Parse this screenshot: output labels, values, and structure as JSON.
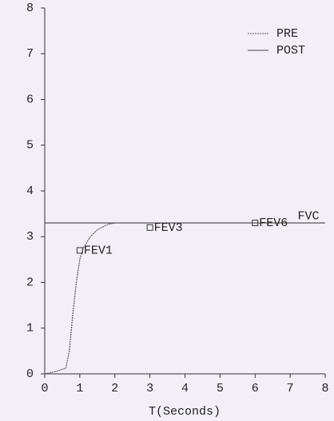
{
  "chart_data": {
    "type": "line",
    "xlabel": "T(Seconds)",
    "xlim": [
      0,
      8
    ],
    "xticks": [
      0,
      1,
      2,
      3,
      4,
      5,
      6,
      7,
      8
    ],
    "ylim": [
      0,
      8
    ],
    "yticks": [
      0,
      1,
      2,
      3,
      4,
      5,
      6,
      7,
      8
    ],
    "legend": "top-right",
    "series": [
      {
        "name": "PRE",
        "color": "#555555",
        "dashed": true,
        "x": [
          0,
          0.3,
          0.6,
          0.7,
          0.8,
          0.9,
          1.0,
          1.1,
          1.3,
          1.5,
          1.8,
          2.0
        ],
        "values": [
          0,
          0.05,
          0.12,
          0.5,
          1.3,
          2.0,
          2.5,
          2.75,
          3.0,
          3.15,
          3.27,
          3.3
        ]
      },
      {
        "name": "POST",
        "color": "#444444",
        "dashed": false,
        "x": [
          0,
          8
        ],
        "values": [
          3.3,
          3.3
        ]
      }
    ],
    "annotations": [
      {
        "label": "FEV1",
        "x": 1,
        "y": 2.7,
        "marker": true
      },
      {
        "label": "FEV3",
        "x": 3,
        "y": 3.2,
        "marker": true
      },
      {
        "label": "FEV6",
        "x": 6,
        "y": 3.3,
        "marker": true
      },
      {
        "label": "FVC",
        "x": 7.1,
        "y": 3.45,
        "marker": false
      }
    ]
  }
}
